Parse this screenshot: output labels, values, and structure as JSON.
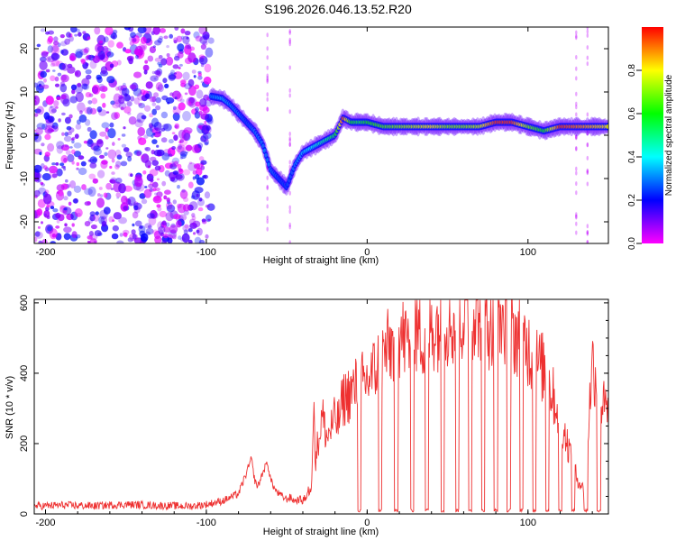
{
  "title": "S196.2026.046.13.52.R20",
  "chart_data": [
    {
      "type": "heatmap",
      "name": "spectrogram",
      "xlabel": "Height of straight line (km)",
      "ylabel": "Frequency (Hz)",
      "xlim": [
        -207,
        150
      ],
      "ylim": [
        -25,
        25
      ],
      "xticks": [
        -200,
        -100,
        0,
        100
      ],
      "xtick_labels": [
        "-200",
        "-100",
        "0",
        "100"
      ],
      "yticks": [
        -20,
        -10,
        0,
        10,
        20
      ],
      "ytick_labels": [
        "-20",
        "-10",
        "0",
        "10",
        "20"
      ],
      "colorbar": {
        "label": "Normalized spectral amplitude",
        "range": [
          0,
          1
        ],
        "ticks": [
          0.0,
          0.2,
          0.4,
          0.6,
          0.8
        ],
        "tick_labels": [
          "0.0",
          "0.2",
          "0.4",
          "0.6",
          "0.8"
        ],
        "colors": [
          "#ff00ff",
          "#0000ff",
          "#00ffff",
          "#00ff00",
          "#ffff00",
          "#ff0000"
        ]
      },
      "noise_region_x": [
        -207,
        -97
      ],
      "signal_track": {
        "height_km": [
          -97,
          -90,
          -85,
          -80,
          -75,
          -70,
          -65,
          -60,
          -55,
          -50,
          -45,
          -40,
          -35,
          -30,
          -25,
          -20,
          -15,
          -10,
          -5,
          0,
          10,
          20,
          30,
          40,
          50,
          60,
          70,
          80,
          90,
          100,
          110,
          120,
          130,
          140,
          150
        ],
        "frequency_hz": [
          9,
          8.5,
          7,
          5,
          3,
          1,
          -2,
          -8,
          -10,
          -12,
          -7,
          -4,
          -3,
          -2,
          -1,
          0,
          4,
          3,
          3,
          3,
          2,
          2,
          2,
          2,
          2,
          2,
          2,
          3,
          3,
          2,
          1,
          2,
          2,
          2,
          2
        ],
        "amplitude": [
          0.3,
          0.35,
          0.3,
          0.3,
          0.25,
          0.3,
          0.3,
          0.3,
          0.25,
          0.25,
          0.3,
          0.35,
          0.4,
          0.45,
          0.5,
          0.55,
          0.95,
          0.6,
          0.55,
          0.6,
          0.65,
          0.7,
          0.75,
          0.8,
          0.7,
          0.7,
          0.75,
          0.95,
          0.95,
          0.7,
          0.6,
          0.95,
          0.9,
          0.85,
          0.8
        ]
      }
    },
    {
      "type": "line",
      "name": "snr",
      "xlabel": "Height of straight line (km)",
      "ylabel": "SNR (10 * v/v)",
      "xlim": [
        -207,
        150
      ],
      "ylim": [
        0,
        610
      ],
      "xticks": [
        -200,
        -100,
        0,
        100
      ],
      "xtick_labels": [
        "-200",
        "-100",
        "0",
        "100"
      ],
      "yticks": [
        0,
        200,
        400,
        600
      ],
      "ytick_labels": [
        "0",
        "200",
        "400",
        "600"
      ],
      "color": "#ee3030",
      "series": [
        {
          "name": "SNR",
          "x": [
            -207,
            -190,
            -170,
            -150,
            -130,
            -110,
            -100,
            -90,
            -80,
            -75,
            -72,
            -70,
            -68,
            -65,
            -62,
            -60,
            -57,
            -55,
            -52,
            -50,
            -48,
            -45,
            -42,
            -40,
            -35,
            -33,
            -32,
            -30,
            -28,
            -25,
            -22,
            -20,
            -18,
            -15,
            -10,
            -5,
            0,
            5,
            10,
            15,
            20,
            25,
            30,
            35,
            40,
            45,
            50,
            55,
            60,
            65,
            70,
            75,
            80,
            85,
            90,
            95,
            100,
            105,
            110,
            115,
            120,
            125,
            130,
            135,
            140,
            145,
            150
          ],
          "y": [
            15,
            18,
            16,
            20,
            17,
            15,
            20,
            30,
            50,
            110,
            150,
            90,
            70,
            110,
            140,
            90,
            60,
            50,
            40,
            35,
            40,
            30,
            35,
            30,
            60,
            250,
            150,
            200,
            260,
            200,
            230,
            250,
            240,
            300,
            320,
            340,
            350,
            380,
            420,
            440,
            470,
            450,
            480,
            470,
            490,
            500,
            510,
            490,
            520,
            540,
            530,
            500,
            520,
            510,
            480,
            470,
            440,
            400,
            380,
            320,
            250,
            180,
            100,
            60,
            400,
            300,
            260
          ]
        }
      ],
      "dropouts_x": [
        -5,
        8,
        18,
        28,
        37,
        47,
        56,
        64,
        72,
        80,
        88,
        96,
        104,
        112,
        120,
        128,
        136,
        144
      ]
    }
  ]
}
